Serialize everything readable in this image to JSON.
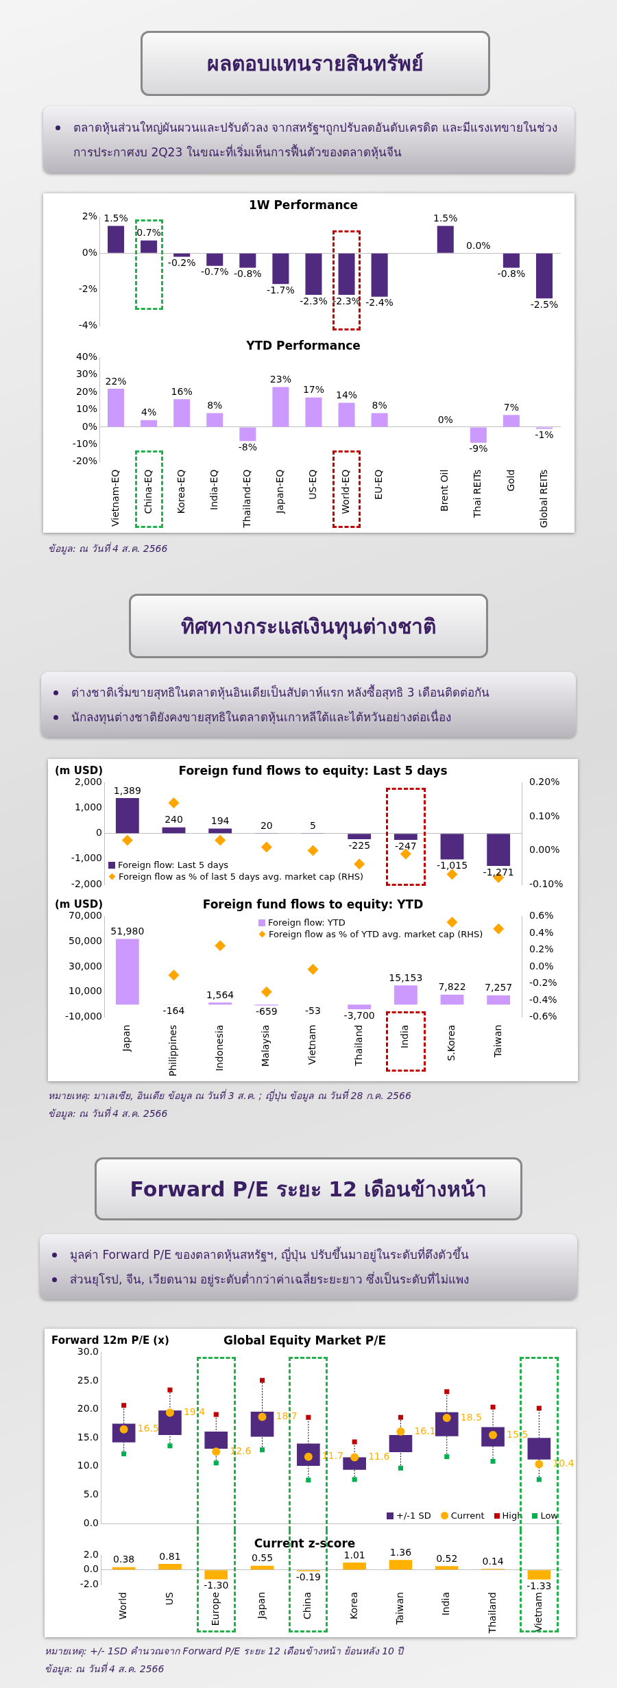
{
  "chart_data": [
    {
      "type": "other",
      "title": "ผลตอบแทนรายสินทรัพย์",
      "annotations": [
        "ตลาดหุ้นส่วนใหญ่ผันผวนและปรับตัวลง จากสหรัฐฯถูกปรับลดอันดับเครดิต และมีแรงเทขายในช่วงการประกาศงบ 2Q23  ในขณะที่เริ่มเห็นการฟื้นตัวของตลาดหุ้นจีน"
      ]
    },
    {
      "type": "bar",
      "title": "1W Performance",
      "categories": [
        "Vietnam-EQ",
        "China-EQ",
        "Korea-EQ",
        "India-EQ",
        "Thailand-EQ",
        "Japan-EQ",
        "US-EQ",
        "World-EQ",
        "EU-EQ",
        null,
        "Brent Oil",
        "Thai REITs",
        "Gold",
        "Global REITs"
      ],
      "values": [
        1.5,
        0.7,
        -0.2,
        -0.7,
        -0.8,
        -1.7,
        -2.3,
        -2.3,
        -2.4,
        null,
        1.5,
        0.0,
        -0.8,
        -2.5
      ],
      "value_labels": [
        "1.5%",
        "0.7%",
        "-0.2%",
        "-0.7%",
        "-0.8%",
        "-1.7%",
        "-2.3%",
        "-2.3%",
        "-2.4%",
        null,
        "1.5%",
        "0.0%",
        "-0.8%",
        "-2.5%"
      ],
      "color": "#4f2a7f",
      "ylim": [
        -4,
        2
      ],
      "yticks": [
        {
          "value": -4,
          "label": "-4%"
        },
        {
          "value": -2,
          "label": "-2%"
        },
        {
          "value": 0,
          "label": "0%"
        },
        {
          "value": 2,
          "label": "2%"
        }
      ],
      "tick_labels": "y"
    },
    {
      "type": "bar",
      "title": "YTD Performance",
      "categories": [
        "Vietnam-EQ",
        "China-EQ",
        "Korea-EQ",
        "India-EQ",
        "Thailand-EQ",
        "Japan-EQ",
        "US-EQ",
        "World-EQ",
        "EU-EQ",
        null,
        "Brent Oil",
        "Thai REITs",
        "Gold",
        "Global REITs"
      ],
      "values": [
        22,
        4,
        16,
        8,
        -8,
        23,
        17,
        14,
        8,
        null,
        0,
        -9,
        7,
        -1
      ],
      "value_labels": [
        "22%",
        "4%",
        "16%",
        "8%",
        "-8%",
        "23%",
        "17%",
        "14%",
        "8%",
        null,
        "0%",
        "-9%",
        "7%",
        "-1%"
      ],
      "color": "#cc99ff",
      "ylim": [
        -20,
        40
      ],
      "yticks": [
        {
          "value": -20,
          "label": "-20%"
        },
        {
          "value": -10,
          "label": "-10%"
        },
        {
          "value": 0,
          "label": "0%"
        },
        {
          "value": 10,
          "label": "10%"
        },
        {
          "value": 20,
          "label": "20%"
        },
        {
          "value": 30,
          "label": "30%"
        },
        {
          "value": 40,
          "label": "40%"
        }
      ],
      "annotations": [
        "ข้อมูล: ณ วันที่ 4 ส.ค. 2566"
      ]
    },
    {
      "type": "other",
      "title": "ทิศทางกระแสเงินทุนต่างชาติ",
      "annotations": [
        "ต่างชาติเริ่มขายสุทธิในตลาดหุ้นอินเดียเป็นสัปดาห์แรก หลังซื้อสุทธิ 3 เดือนติดต่อกัน",
        "นักลงทุนต่างชาติยังคงขายสุทธิในตลาดหุ้นเกาหลีใต้และไต้หวันอย่างต่อเนื่อง"
      ]
    },
    {
      "type": "bar",
      "title": "Foreign fund flows to equity: Last 5 days",
      "ylabel": "(m USD)",
      "categories": [
        "Japan",
        "Philippines",
        "Indonesia",
        "Malaysia",
        "Vietnam",
        "Thailand",
        "India",
        "S.Korea",
        "Taiwan"
      ],
      "series": [
        {
          "name": "Foreign flow: Last 5 days",
          "color": "#4f2a7f",
          "values": [
            1389,
            240,
            194,
            20,
            5,
            -225,
            -247,
            -1015,
            -1271
          ],
          "value_labels": [
            "1,389",
            "240",
            "194",
            "20",
            "5",
            "-225",
            "-247",
            "-1,015",
            "-1,271"
          ]
        },
        {
          "type": "scatter",
          "name": "Foreign flow as % of last 5 days avg. market cap (RHS)",
          "color": "#ffa500",
          "axis": "y2",
          "marker": "diamond",
          "x": [
            "Japan",
            "Philippines",
            "Indonesia",
            "Malaysia",
            "Vietnam",
            "Thailand",
            "India",
            "S.Korea",
            "Taiwan"
          ],
          "values": [
            0.03,
            0.14,
            0.03,
            0.01,
            0.0,
            -0.04,
            -0.01,
            -0.07,
            -0.08
          ]
        }
      ],
      "ylim": [
        -2000,
        2000
      ],
      "yticks": [
        {
          "value": -2000,
          "label": "-2,000"
        },
        {
          "value": -1000,
          "label": "-1,000"
        },
        0,
        {
          "value": 1000,
          "label": "1,000"
        },
        {
          "value": 2000,
          "label": "2,000"
        }
      ],
      "y2lim": [
        -0.1,
        0.2
      ],
      "y2ticks": [
        {
          "value": -0.1,
          "label": "-0.10%"
        },
        {
          "value": 0,
          "label": "0.00%"
        },
        {
          "value": 0.1,
          "label": "0.10%"
        },
        {
          "value": 0.2,
          "label": "0.20%"
        }
      ],
      "legend": "bottom left",
      "tick_labels": "y"
    },
    {
      "type": "bar",
      "title": "Foreign fund flows to equity: YTD",
      "ylabel": "(m USD)",
      "categories": [
        "Japan",
        "Philippines",
        "Indonesia",
        "Malaysia",
        "Vietnam",
        "Thailand",
        "India",
        "S.Korea",
        "Taiwan"
      ],
      "series": [
        {
          "name": "Foreign flow: YTD",
          "color": "#cc99ff",
          "values": [
            51980,
            -164,
            1564,
            -659,
            -53,
            -3700,
            15153,
            7822,
            7257
          ],
          "value_labels": [
            "51,980",
            "-164",
            "1,564",
            "-659",
            "-53",
            "-3,700",
            "15,153",
            "7,822",
            "7,257"
          ]
        },
        {
          "type": "scatter",
          "name": "Foreign flow as % of YTD avg. market cap (RHS)",
          "color": "#ffa500",
          "axis": "y2",
          "marker": "diamond",
          "x": [
            "Japan",
            "Philippines",
            "Indonesia",
            "Malaysia",
            "Vietnam",
            "Thailand",
            "India",
            "S.Korea",
            "Taiwan"
          ],
          "values": [
            null,
            -0.1,
            0.25,
            -0.3,
            -0.03,
            null,
            null,
            0.53,
            0.45
          ]
        }
      ],
      "ylim": [
        -10000,
        70000
      ],
      "yticks": [
        {
          "value": -10000,
          "label": "-10,000"
        },
        {
          "value": 10000,
          "label": "10,000"
        },
        {
          "value": 30000,
          "label": "30,000"
        },
        {
          "value": 50000,
          "label": "50,000"
        },
        {
          "value": 70000,
          "label": "70,000"
        }
      ],
      "y2lim": [
        -0.6,
        0.6
      ],
      "y2ticks": [
        {
          "value": -0.6,
          "label": "-0.6%"
        },
        {
          "value": -0.4,
          "label": "-0.4%"
        },
        {
          "value": -0.2,
          "label": "-0.2%"
        },
        {
          "value": 0,
          "label": "0.0%"
        },
        {
          "value": 0.2,
          "label": "0.2%"
        },
        {
          "value": 0.4,
          "label": "0.4%"
        },
        {
          "value": 0.6,
          "label": "0.6%"
        }
      ],
      "legend": "top right",
      "annotations": [
        "หมายเหตุ: มาเลเซีย, อินเดีย ข้อมูล ณ วันที่ 3 ส.ค. ; ญี่ปุ่น ข้อมูล ณ วันที่ 28 ก.ค. 2566",
        "ข้อมูล: ณ วันที่ 4 ส.ค. 2566"
      ]
    },
    {
      "type": "other",
      "title": "Forward P/E ระยะ 12 เดือนข้างหน้า",
      "annotations": [
        "มูลค่า Forward P/E ของตลาดหุ้นสหรัฐฯ, ญี่ปุ่น ปรับขึ้นมาอยู่ในระดับที่ตึงตัวขึ้น",
        "ส่วนยุโรป, จีน, เวียดนาม อยู่ระดับต่ำกว่าค่าเฉลี่ยระยะยาว ซึ่งเป็นระดับที่ไม่แพง"
      ]
    },
    {
      "type": "bar",
      "title": "Global Equity Market P/E",
      "ylabel": "Forward 12m P/E (x)",
      "categories": [
        "World",
        "US",
        "Europe",
        "Japan",
        "China",
        "Korea",
        "Taiwan",
        "India",
        "Thailand",
        "Vietnam"
      ],
      "series": [
        {
          "name": "+/-1 SD",
          "color": "#4f2a7f",
          "base": [
            14.2,
            15.5,
            13.1,
            15.2,
            10.1,
            9.4,
            12.5,
            15.3,
            13.5,
            11.2
          ],
          "values": [
            3.3,
            4.3,
            3.0,
            4.4,
            3.9,
            2.2,
            3.0,
            4.2,
            3.4,
            3.8
          ]
        },
        {
          "type": "scatter",
          "name": "Current",
          "color": "#ffb000",
          "marker": "circle",
          "x": [
            "World",
            "US",
            "Europe",
            "Japan",
            "China",
            "Korea",
            "Taiwan",
            "India",
            "Thailand",
            "Vietnam"
          ],
          "values": [
            16.5,
            19.4,
            12.6,
            18.7,
            11.7,
            11.6,
            16.1,
            18.5,
            15.5,
            10.4
          ],
          "value_labels": [
            "16.5",
            "19.4",
            "12.6",
            "18.7",
            "11.7",
            "11.6",
            "16.1",
            "18.5",
            "15.5",
            "10.4"
          ]
        },
        {
          "type": "scatter",
          "name": "High",
          "color": "#c00000",
          "marker": "square",
          "x": [
            "World",
            "US",
            "Europe",
            "Japan",
            "China",
            "Korea",
            "Taiwan",
            "India",
            "Thailand",
            "Vietnam"
          ],
          "values": [
            20.7,
            23.4,
            19.1,
            25.1,
            18.6,
            14.3,
            18.6,
            23.1,
            20.4,
            20.2
          ]
        },
        {
          "type": "scatter",
          "name": "Low",
          "color": "#00b050",
          "marker": "square",
          "x": [
            "World",
            "US",
            "Europe",
            "Japan",
            "China",
            "Korea",
            "Taiwan",
            "India",
            "Thailand",
            "Vietnam"
          ],
          "values": [
            12.2,
            13.6,
            10.6,
            12.9,
            7.6,
            7.7,
            9.7,
            11.7,
            10.9,
            7.7
          ]
        }
      ],
      "ylim": [
        0,
        30
      ],
      "yticks": [
        {
          "value": 0,
          "label": "0.0"
        },
        {
          "value": 5,
          "label": "5.0"
        },
        {
          "value": 10,
          "label": "10.0"
        },
        {
          "value": 15,
          "label": "15.0"
        },
        {
          "value": 20,
          "label": "20.0"
        },
        {
          "value": 25,
          "label": "25.0"
        },
        {
          "value": 30,
          "label": "30.0"
        }
      ],
      "legend": "bottom right",
      "tick_labels": "y"
    },
    {
      "type": "bar",
      "title": "Current z-score",
      "categories": [
        "World",
        "US",
        "Europe",
        "Japan",
        "China",
        "Korea",
        "Taiwan",
        "India",
        "Thailand",
        "Vietnam"
      ],
      "values": [
        0.38,
        0.81,
        -1.3,
        0.55,
        -0.19,
        1.01,
        1.36,
        0.52,
        0.14,
        -1.33
      ],
      "value_labels": [
        "0.38",
        "0.81",
        "-1.30",
        "0.55",
        "-0.19",
        "1.01",
        "1.36",
        "0.52",
        "0.14",
        "-1.33"
      ],
      "color": "#ffb000",
      "ylim": [
        -2,
        2
      ],
      "yticks": [
        {
          "value": -2,
          "label": "-2.0"
        },
        {
          "value": 0,
          "label": "0.0"
        },
        {
          "value": 2,
          "label": "2.0"
        }
      ],
      "annotations": [
        "หมายเหตุ: +/- 1SD คำนวณจาก Forward P/E ระยะ 12 เดือนข้างหน้า ย้อนหลัง 10 ปี",
        "ข้อมูล: ณ วันที่ 4 ส.ค. 2566"
      ]
    }
  ]
}
